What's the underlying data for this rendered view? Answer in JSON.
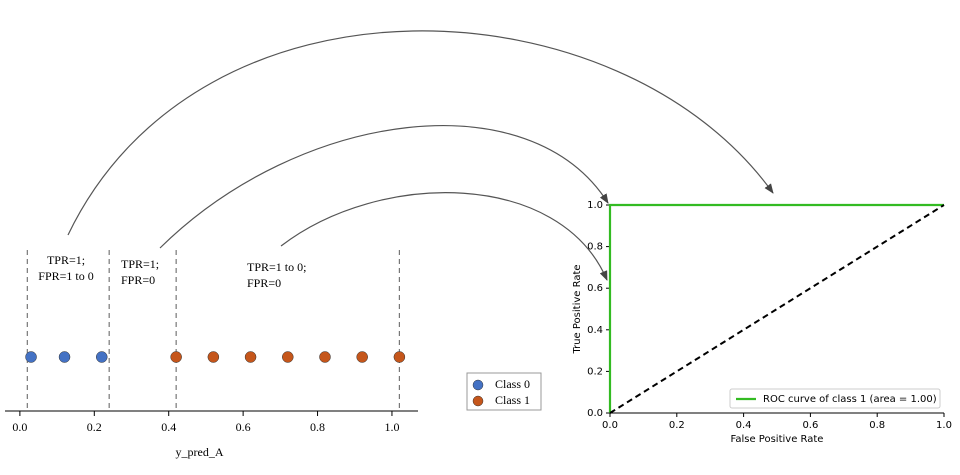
{
  "chart_data": [
    {
      "type": "strip",
      "x_label": "y_pred_A",
      "xlim": [
        -0.04,
        1.07
      ],
      "xticks": [
        {
          "value": 0,
          "label": "0.0"
        },
        {
          "value": 0.2,
          "label": "0.2"
        },
        {
          "value": 0.4,
          "label": "0.4"
        },
        {
          "value": 0.6,
          "label": "0.6"
        },
        {
          "value": 0.8,
          "label": "0.8"
        },
        {
          "value": 1,
          "label": "1.0"
        }
      ],
      "series": [
        {
          "name": "Class 0",
          "color": "#4472c4",
          "x": [
            0.03,
            0.12,
            0.22
          ]
        },
        {
          "name": "Class 1",
          "color": "#c5561b",
          "x": [
            0.42,
            0.52,
            0.62,
            0.72,
            0.82,
            0.92,
            1.02
          ]
        }
      ],
      "thresholds": [
        0.02,
        0.24,
        0.42,
        1.02
      ],
      "annotations": [
        [
          "TPR=1;",
          "FPR=1  to 0"
        ],
        [
          "TPR=1;",
          "FPR=0"
        ],
        [
          "TPR=1 to 0;",
          "FPR=0"
        ]
      ]
    },
    {
      "type": "line",
      "x_label": "False Positive Rate",
      "y_label": "True Positive Rate",
      "xlim": [
        0,
        1
      ],
      "ylim": [
        0,
        1
      ],
      "xticks": [
        {
          "value": 0,
          "label": "0.0"
        },
        {
          "value": 0.2,
          "label": "0.2"
        },
        {
          "value": 0.4,
          "label": "0.4"
        },
        {
          "value": 0.6,
          "label": "0.6"
        },
        {
          "value": 0.8,
          "label": "0.8"
        },
        {
          "value": 1,
          "label": "1.0"
        }
      ],
      "yticks": [
        {
          "value": 0,
          "label": "0.0"
        },
        {
          "value": 0.2,
          "label": "0.2"
        },
        {
          "value": 0.4,
          "label": "0.4"
        },
        {
          "value": 0.6,
          "label": "0.6"
        },
        {
          "value": 0.8,
          "label": "0.8"
        },
        {
          "value": 1,
          "label": "1.0"
        }
      ],
      "legend": "lower right",
      "series": [
        {
          "name": "ROC curve of class 1 (area = 1.00)",
          "color": "#33bb22",
          "x": [
            0,
            0,
            1
          ],
          "values": [
            0,
            1,
            1
          ]
        },
        {
          "color": "#000000",
          "dashed": true,
          "x": [
            0,
            1
          ],
          "values": [
            0,
            1
          ]
        }
      ]
    }
  ]
}
